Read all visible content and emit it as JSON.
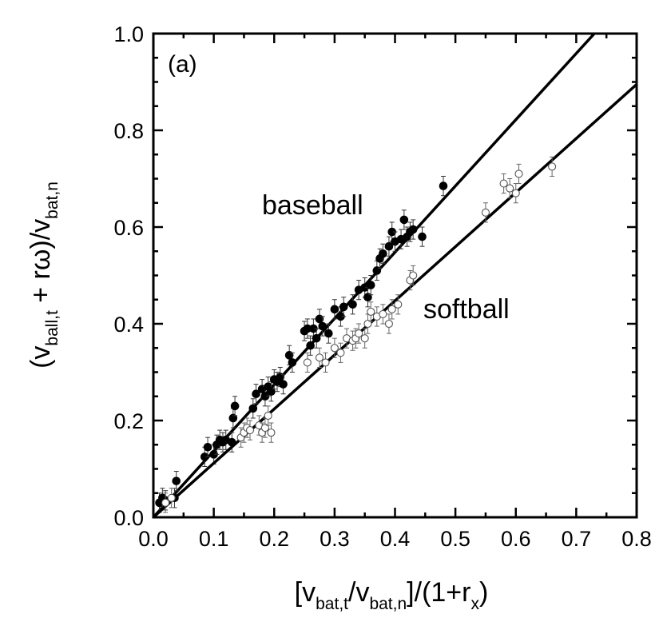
{
  "chart_data": {
    "type": "scatter",
    "panel_label": "(a)",
    "xlabel": {
      "open": "[v",
      "sub1": "bat,t",
      "mid": "/v",
      "sub2": "bat,n",
      "close": "]/(1+r",
      "sub3": "x",
      "end": ")"
    },
    "ylabel": {
      "open": "(v",
      "sub1": "ball,t",
      "mid": " + rω)/v",
      "sub2": "bat,n"
    },
    "xlim": [
      0.0,
      0.8
    ],
    "ylim": [
      0.0,
      1.0
    ],
    "x_ticks": [
      "0.0",
      "0.1",
      "0.2",
      "0.3",
      "0.4",
      "0.5",
      "0.6",
      "0.7",
      "0.8"
    ],
    "y_ticks": [
      "0.0",
      "0.2",
      "0.4",
      "0.6",
      "0.8",
      "1.0"
    ],
    "error_bar": 0.02,
    "annotations": {
      "baseball": "baseball",
      "softball": "softball"
    },
    "series": [
      {
        "name": "baseball",
        "marker": "filled-circle",
        "fit_line": {
          "x": [
            0.0,
            0.73
          ],
          "y": [
            0.0,
            1.0
          ]
        },
        "points": [
          [
            0.01,
            0.03
          ],
          [
            0.015,
            0.04
          ],
          [
            0.02,
            0.035
          ],
          [
            0.035,
            0.04
          ],
          [
            0.038,
            0.075
          ],
          [
            0.085,
            0.125
          ],
          [
            0.09,
            0.145
          ],
          [
            0.1,
            0.13
          ],
          [
            0.105,
            0.15
          ],
          [
            0.11,
            0.16
          ],
          [
            0.115,
            0.155
          ],
          [
            0.12,
            0.16
          ],
          [
            0.13,
            0.155
          ],
          [
            0.132,
            0.205
          ],
          [
            0.135,
            0.23
          ],
          [
            0.165,
            0.225
          ],
          [
            0.17,
            0.255
          ],
          [
            0.18,
            0.265
          ],
          [
            0.185,
            0.25
          ],
          [
            0.19,
            0.27
          ],
          [
            0.195,
            0.26
          ],
          [
            0.2,
            0.285
          ],
          [
            0.205,
            0.28
          ],
          [
            0.21,
            0.29
          ],
          [
            0.215,
            0.275
          ],
          [
            0.225,
            0.335
          ],
          [
            0.23,
            0.32
          ],
          [
            0.25,
            0.385
          ],
          [
            0.255,
            0.39
          ],
          [
            0.26,
            0.355
          ],
          [
            0.265,
            0.39
          ],
          [
            0.27,
            0.37
          ],
          [
            0.275,
            0.41
          ],
          [
            0.28,
            0.395
          ],
          [
            0.29,
            0.38
          ],
          [
            0.3,
            0.43
          ],
          [
            0.31,
            0.415
          ],
          [
            0.315,
            0.435
          ],
          [
            0.33,
            0.44
          ],
          [
            0.34,
            0.47
          ],
          [
            0.35,
            0.475
          ],
          [
            0.355,
            0.455
          ],
          [
            0.36,
            0.48
          ],
          [
            0.37,
            0.51
          ],
          [
            0.375,
            0.535
          ],
          [
            0.38,
            0.545
          ],
          [
            0.39,
            0.56
          ],
          [
            0.395,
            0.59
          ],
          [
            0.4,
            0.57
          ],
          [
            0.41,
            0.575
          ],
          [
            0.415,
            0.615
          ],
          [
            0.42,
            0.58
          ],
          [
            0.425,
            0.59
          ],
          [
            0.43,
            0.595
          ],
          [
            0.445,
            0.58
          ],
          [
            0.48,
            0.685
          ]
        ]
      },
      {
        "name": "softball",
        "marker": "open-circle",
        "fit_line": {
          "x": [
            0.0,
            0.8
          ],
          "y": [
            0.0,
            0.895
          ]
        },
        "points": [
          [
            0.02,
            0.03
          ],
          [
            0.03,
            0.04
          ],
          [
            0.145,
            0.165
          ],
          [
            0.15,
            0.175
          ],
          [
            0.155,
            0.185
          ],
          [
            0.16,
            0.18
          ],
          [
            0.175,
            0.19
          ],
          [
            0.18,
            0.175
          ],
          [
            0.185,
            0.185
          ],
          [
            0.19,
            0.21
          ],
          [
            0.195,
            0.175
          ],
          [
            0.255,
            0.32
          ],
          [
            0.275,
            0.33
          ],
          [
            0.285,
            0.32
          ],
          [
            0.3,
            0.35
          ],
          [
            0.31,
            0.34
          ],
          [
            0.32,
            0.37
          ],
          [
            0.33,
            0.365
          ],
          [
            0.335,
            0.37
          ],
          [
            0.34,
            0.38
          ],
          [
            0.35,
            0.37
          ],
          [
            0.355,
            0.4
          ],
          [
            0.36,
            0.425
          ],
          [
            0.37,
            0.415
          ],
          [
            0.38,
            0.42
          ],
          [
            0.39,
            0.4
          ],
          [
            0.395,
            0.43
          ],
          [
            0.405,
            0.44
          ],
          [
            0.425,
            0.49
          ],
          [
            0.43,
            0.5
          ],
          [
            0.55,
            0.63
          ],
          [
            0.58,
            0.69
          ],
          [
            0.59,
            0.68
          ],
          [
            0.6,
            0.67
          ],
          [
            0.605,
            0.71
          ],
          [
            0.66,
            0.725
          ]
        ]
      }
    ]
  }
}
